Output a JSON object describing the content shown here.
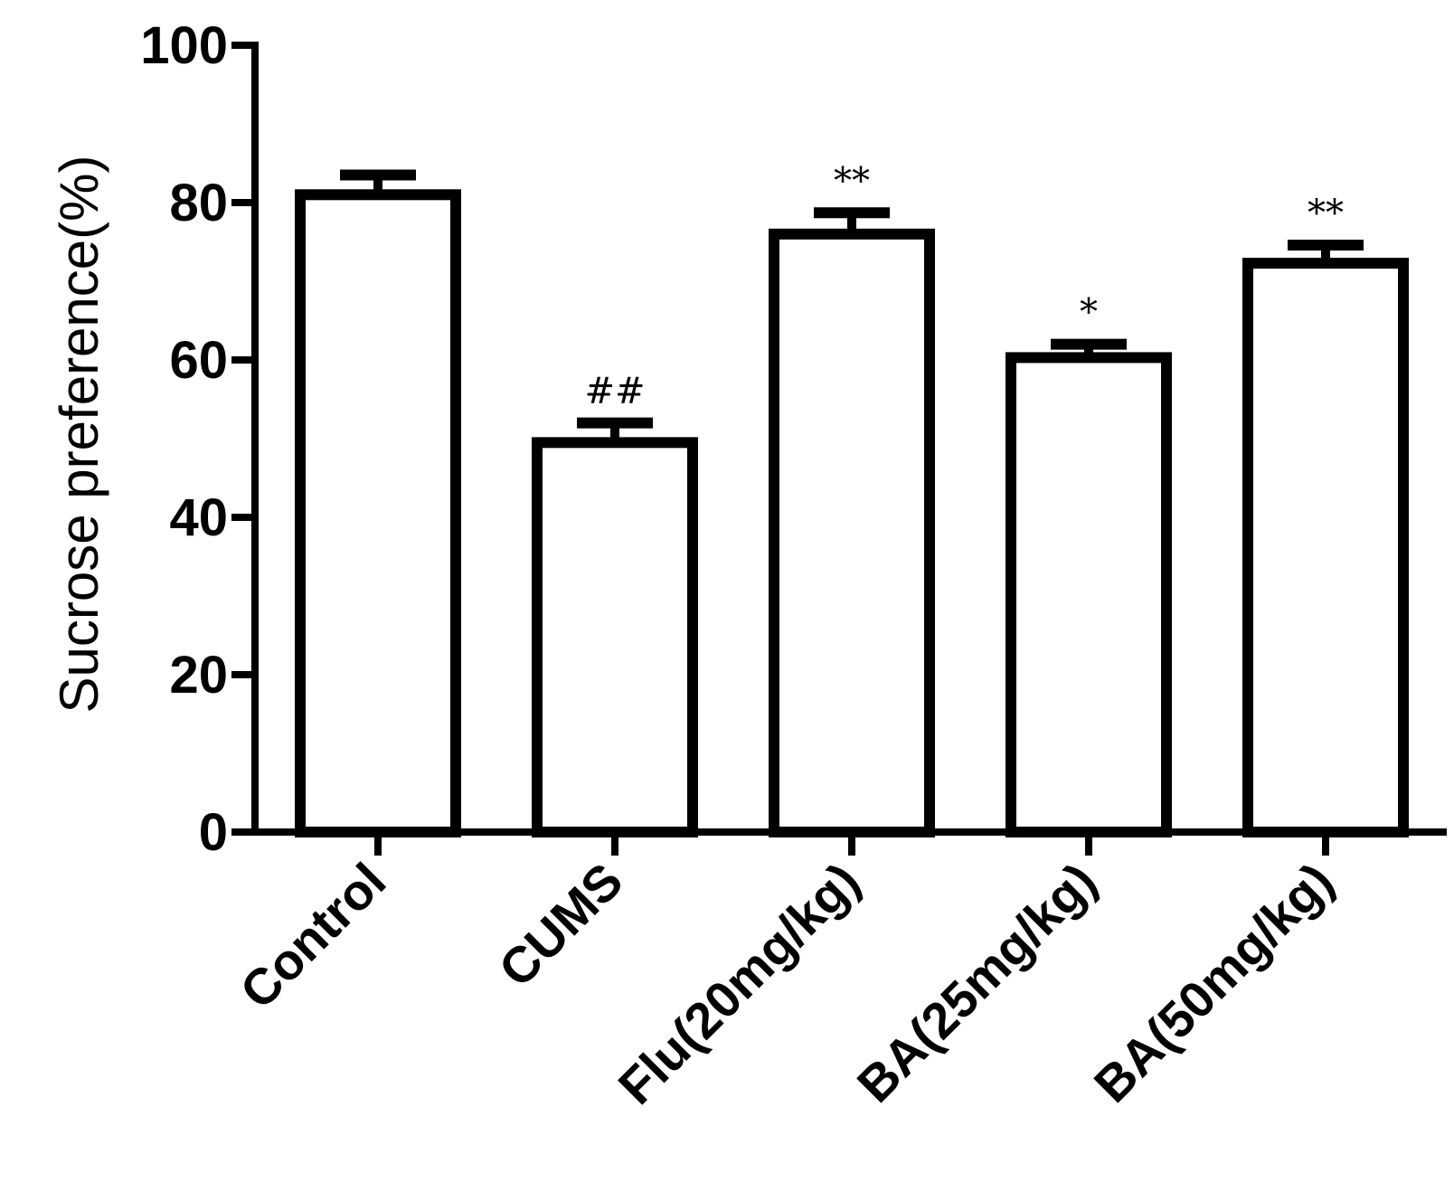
{
  "chart_data": {
    "type": "bar",
    "title": "",
    "xlabel": "",
    "ylabel": "Sucrose preference(%)",
    "ylim": [
      0,
      100
    ],
    "yticks": [
      "0",
      "20",
      "40",
      "60",
      "80",
      "100"
    ],
    "categories": [
      "Control",
      "CUMS",
      "Flu(20mg/kg)",
      "BA(25mg/kg)",
      "BA(50mg/kg)"
    ],
    "values": [
      81,
      49.5,
      76,
      60.3,
      72.3
    ],
    "errors": [
      2.5,
      2.5,
      2.7,
      1.7,
      2.3
    ],
    "annotations": [
      "",
      "##",
      "**",
      "*",
      "**"
    ],
    "grid": false,
    "legend": "none",
    "colors": {
      "bar_fill": "#ffffff",
      "stroke": "#000000"
    }
  }
}
